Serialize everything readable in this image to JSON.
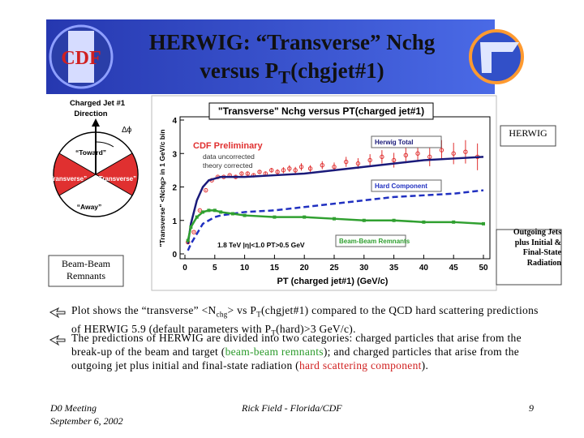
{
  "header": {
    "title_line1": "HERWIG: “Transverse” Nchg",
    "title_line2": [
      {
        "text": "versus P"
      },
      {
        "text": "T",
        "sub": true
      },
      {
        "text": "(chgjet#1)"
      }
    ],
    "logo_text": "CDF"
  },
  "diagram": {
    "jet_label_1": "Charged Jet #1",
    "jet_label_2": "Direction",
    "angle": "Δϕ",
    "toward": "“Toward”",
    "transverse_left": "“Transverse”",
    "transverse_right": "“Transverse”",
    "away": "“Away”"
  },
  "labels": {
    "herwig": "HERWIG",
    "beam": "Beam-Beam Remnants",
    "outgoing": "Outgoing Jets plus Initial & Final-State Radiation"
  },
  "chart_data": {
    "type": "line",
    "title": "\"Transverse\" Nchg versus PT(charged jet#1)",
    "x_label": "PT (charged jet#1)  (GeV/c)",
    "y_label": "\"Transverse\" <Nchg> in 1 GeV/c bin",
    "annotations": [
      "CDF Preliminary",
      "data uncorrected",
      "theory corrected",
      "1.8 TeV |η|<1.0 PT>0.5 GeV"
    ],
    "xlim": [
      0,
      50
    ],
    "ylim": [
      0,
      4
    ],
    "xticks": [
      0,
      5,
      10,
      15,
      20,
      25,
      30,
      35,
      40,
      45,
      50
    ],
    "yticks": [
      0,
      1,
      2,
      3,
      4
    ],
    "series": [
      {
        "color": "#e03030",
        "style": "markers",
        "x": [
          0.5,
          1.5,
          2.5,
          3.5,
          4.5,
          5.5,
          6.5,
          7.5,
          8.5,
          9.5,
          10.5,
          11.5,
          12.5,
          13.5,
          14.5,
          15.5,
          16.5,
          17.5,
          18.5,
          19.5,
          21,
          23,
          25,
          27,
          29,
          31,
          33,
          35,
          37,
          39,
          41,
          43,
          45,
          47,
          49
        ],
        "values": [
          0.35,
          0.65,
          1.3,
          1.9,
          2.2,
          2.3,
          2.3,
          2.35,
          2.3,
          2.4,
          2.4,
          2.35,
          2.45,
          2.4,
          2.5,
          2.45,
          2.5,
          2.55,
          2.5,
          2.6,
          2.55,
          2.65,
          2.6,
          2.75,
          2.7,
          2.8,
          2.9,
          2.8,
          2.95,
          3.0,
          2.9,
          3.1,
          3.0,
          3.05,
          2.9
        ],
        "errors": [
          0.02,
          0.02,
          0.02,
          0.02,
          0.02,
          0.03,
          0.03,
          0.03,
          0.04,
          0.04,
          0.05,
          0.05,
          0.06,
          0.06,
          0.07,
          0.08,
          0.09,
          0.1,
          0.1,
          0.11,
          0.1,
          0.12,
          0.13,
          0.15,
          0.16,
          0.18,
          0.2,
          0.22,
          0.24,
          0.25,
          0.28,
          0.3,
          0.32,
          0.35,
          0.4
        ]
      },
      {
        "name": "Herwig Total",
        "color": "#1a1a7a",
        "style": "solid",
        "x": [
          0.5,
          1,
          2,
          3,
          4,
          5,
          6,
          8,
          10,
          15,
          20,
          25,
          30,
          35,
          40,
          45,
          50
        ],
        "values": [
          0.3,
          0.9,
          1.6,
          2.0,
          2.2,
          2.25,
          2.3,
          2.3,
          2.3,
          2.35,
          2.4,
          2.5,
          2.6,
          2.7,
          2.8,
          2.85,
          2.9
        ]
      },
      {
        "name": "Hard Component",
        "color": "#2030c0",
        "style": "dashed",
        "x": [
          0.5,
          1,
          2,
          3,
          4,
          5,
          6,
          8,
          10,
          15,
          20,
          25,
          30,
          35,
          40,
          45,
          50
        ],
        "values": [
          0.1,
          0.3,
          0.6,
          0.9,
          1.0,
          1.1,
          1.15,
          1.2,
          1.25,
          1.3,
          1.4,
          1.5,
          1.6,
          1.7,
          1.75,
          1.8,
          1.9
        ]
      },
      {
        "name": "Beam-Beam Remnants",
        "color": "#30a030",
        "style": "solid-markers",
        "x": [
          0.5,
          1,
          2,
          3,
          4,
          5,
          6,
          8,
          10,
          15,
          20,
          25,
          30,
          35,
          40,
          45,
          50
        ],
        "values": [
          0.4,
          0.8,
          1.1,
          1.25,
          1.3,
          1.3,
          1.25,
          1.2,
          1.15,
          1.1,
          1.1,
          1.05,
          1.0,
          1.0,
          0.95,
          0.95,
          0.9
        ]
      }
    ]
  },
  "bullets": [
    {
      "segments": [
        {
          "text": "Plot shows the “transverse” <N"
        },
        {
          "text": "chg",
          "sub": true
        },
        {
          "text": "> vs P"
        },
        {
          "text": "T",
          "sub": true
        },
        {
          "text": "(chgjet#1) compared to the QCD hard scattering predictions of HERWIG 5.9 (default parameters with P"
        },
        {
          "text": "T",
          "sub": true
        },
        {
          "text": "(hard)>3 GeV/c)."
        }
      ]
    },
    {
      "segments": [
        {
          "text": "The predictions of HERWIG are divided into two categories: charged particles that arise from the break-up of the beam and target ("
        },
        {
          "text": "beam-beam remnants",
          "color": "#2a9a2a"
        },
        {
          "text": "); and charged particles that arise from the outgoing jet plus initial and final-state radiation ("
        },
        {
          "text": "hard scattering component",
          "color": "#d02020"
        },
        {
          "text": ")."
        }
      ]
    }
  ],
  "footer": {
    "meeting": "D0 Meeting",
    "date": "September 6, 2002",
    "author": "Rick Field - Florida/CDF",
    "page": "9"
  }
}
